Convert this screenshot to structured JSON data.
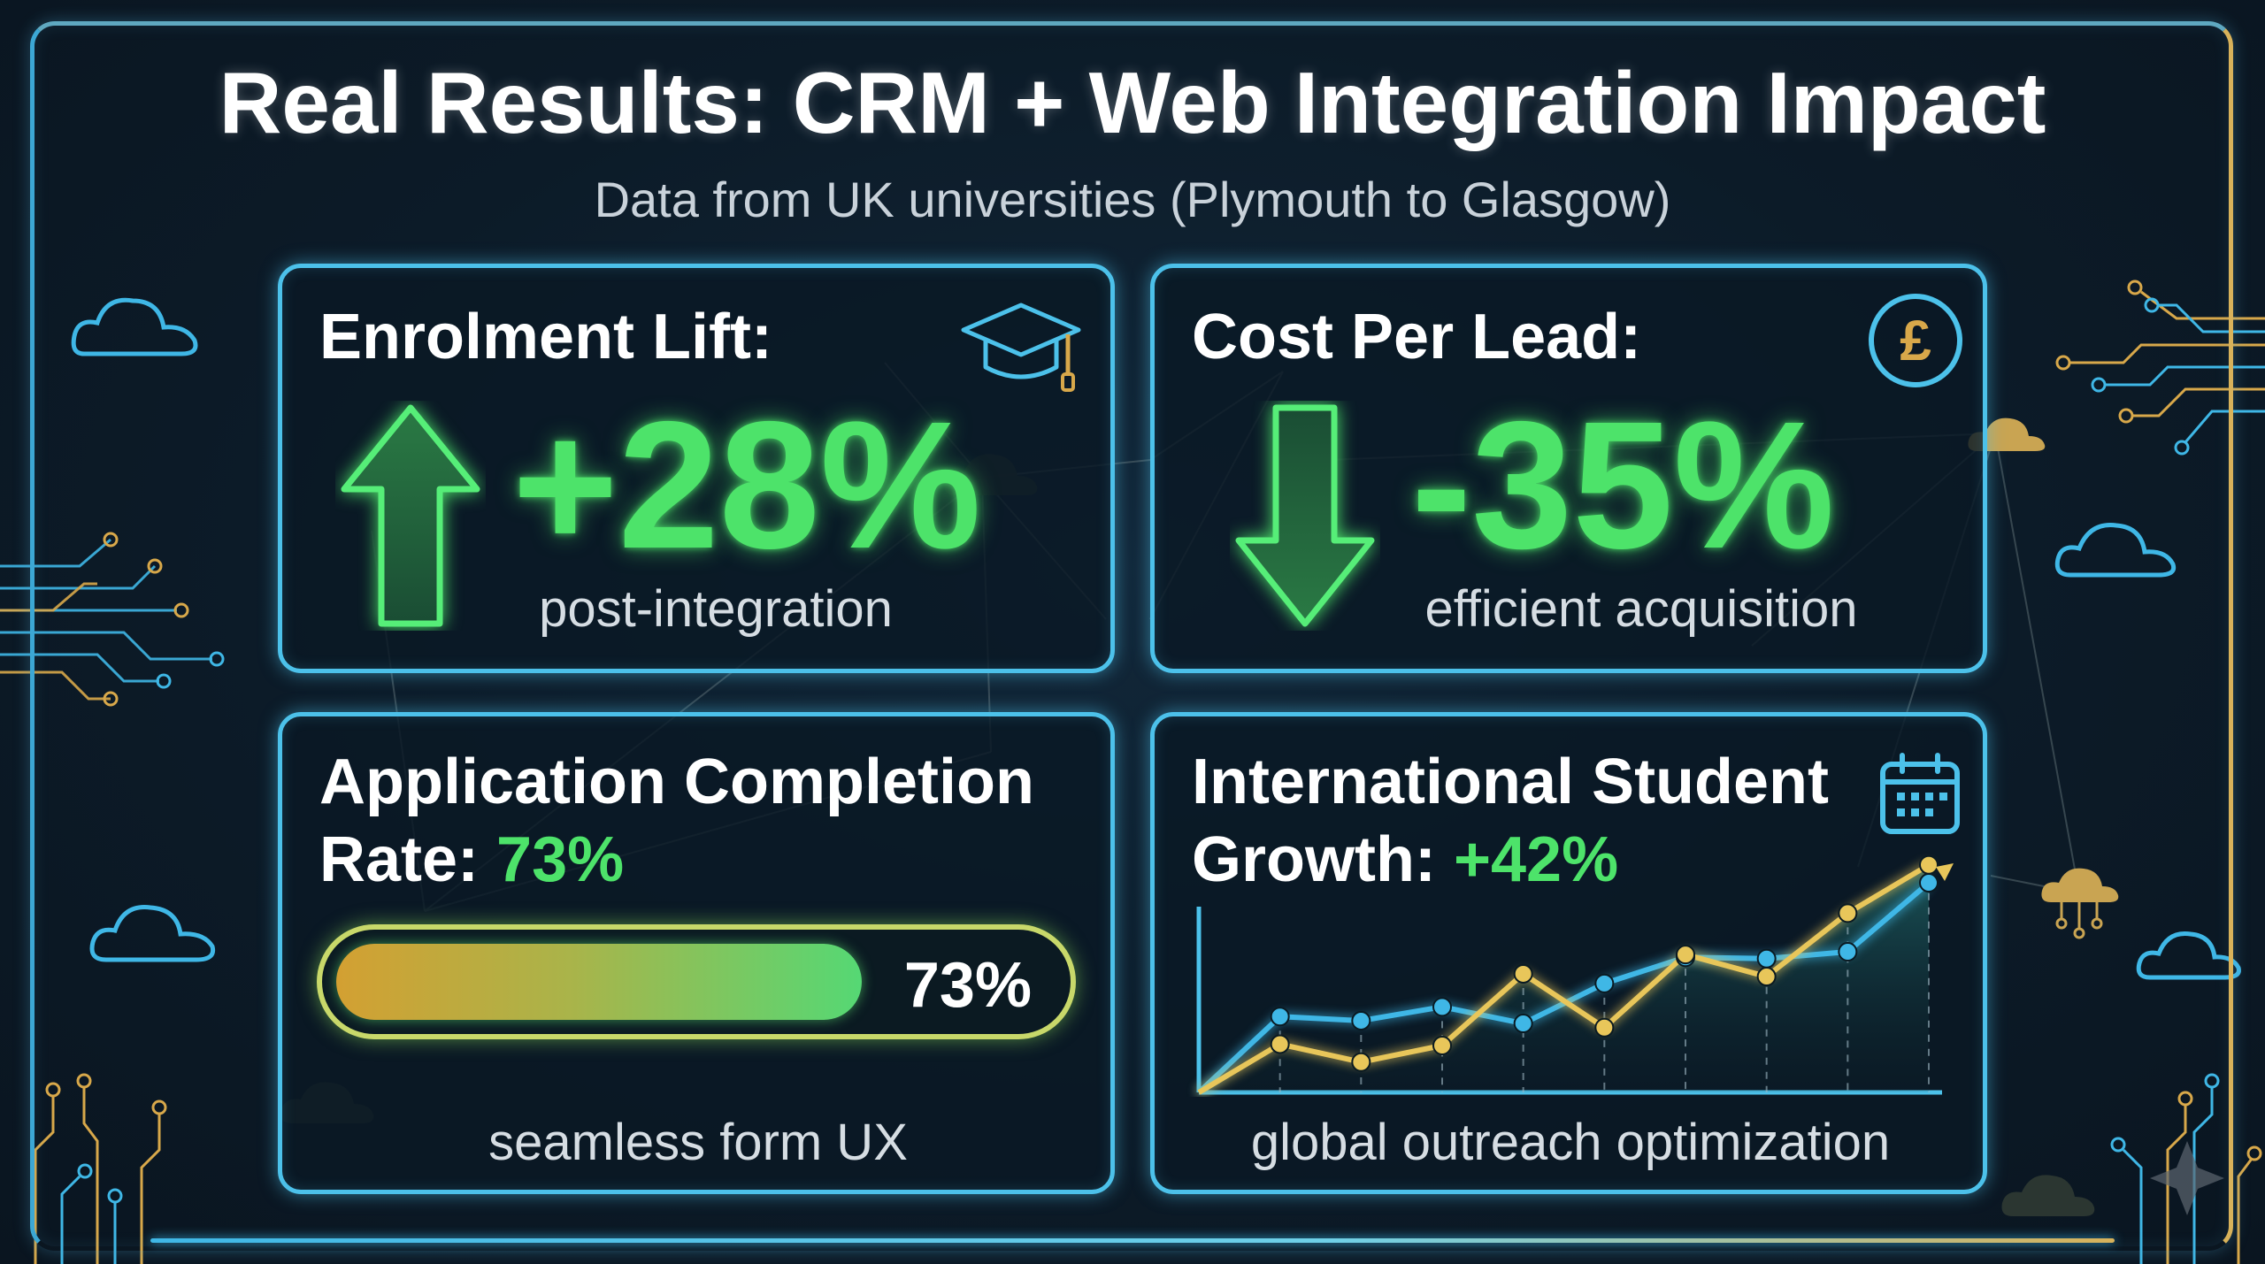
{
  "header": {
    "title": "Real Results: CRM + Web Integration Impact",
    "subtitle": "Data from UK universities (Plymouth to Glasgow)"
  },
  "cards": {
    "enrolment": {
      "title": "Enrolment Lift:",
      "value": "+28%",
      "caption": "post-integration",
      "icon": "graduation-cap-icon",
      "arrow": "up-arrow-icon"
    },
    "cost": {
      "title": "Cost Per Lead:",
      "value": "-35%",
      "caption": "efficient acquisition",
      "icon": "pound-coin-icon",
      "arrow": "down-arrow-icon"
    },
    "completion": {
      "title_line1": "Application Completion",
      "title_line2_prefix": "Rate: ",
      "title_value": "73%",
      "progress_label": "73%",
      "progress_percent": 73,
      "caption": "seamless form UX"
    },
    "international": {
      "title_line1": "International Student",
      "title_line2_prefix": "Growth: ",
      "title_value": "+42%",
      "caption": "global outreach optimization",
      "icon": "calendar-icon"
    }
  },
  "chart_data": {
    "type": "line",
    "x": [
      0,
      1,
      2,
      3,
      4,
      5,
      6,
      7,
      8,
      9
    ],
    "series": [
      {
        "values": [
          0,
          5.5,
          5.2,
          6.2,
          5.0,
          7.9,
          9.8,
          9.7,
          10.2,
          15.2
        ]
      },
      {
        "values": [
          0,
          3.5,
          2.2,
          3.4,
          8.6,
          4.7,
          10.0,
          8.4,
          13.0,
          16.5
        ]
      }
    ],
    "ylim": [
      0,
      17
    ],
    "grid": false,
    "colors": {
      "series1": "#3fb7e6",
      "series2": "#e8c65a"
    }
  },
  "colors": {
    "accent_green": "#4de36a",
    "card_border": "#4cc1ea",
    "gold": "#d8b25a"
  }
}
